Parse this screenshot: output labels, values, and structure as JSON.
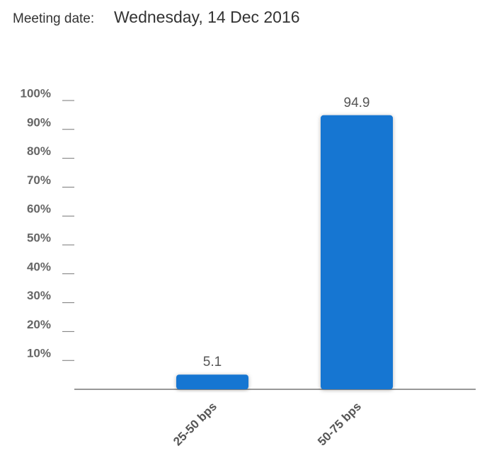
{
  "chart_data": {
    "type": "bar",
    "title_label": "Meeting date:",
    "title": "Wednesday, 14 Dec 2016",
    "categories": [
      "25-50 bps",
      "50-75 bps"
    ],
    "values": [
      5.1,
      94.9
    ],
    "color": "#1976d2",
    "ylim": [
      0,
      100
    ],
    "yticks": [
      {
        "value": 10,
        "label": "10%"
      },
      {
        "value": 20,
        "label": "20%"
      },
      {
        "value": 30,
        "label": "30%"
      },
      {
        "value": 40,
        "label": "40%"
      },
      {
        "value": 50,
        "label": "50%"
      },
      {
        "value": 60,
        "label": "60%"
      },
      {
        "value": 70,
        "label": "70%"
      },
      {
        "value": 80,
        "label": "80%"
      },
      {
        "value": 90,
        "label": "90%"
      },
      {
        "value": 100,
        "label": "100%"
      }
    ],
    "grid": false
  }
}
